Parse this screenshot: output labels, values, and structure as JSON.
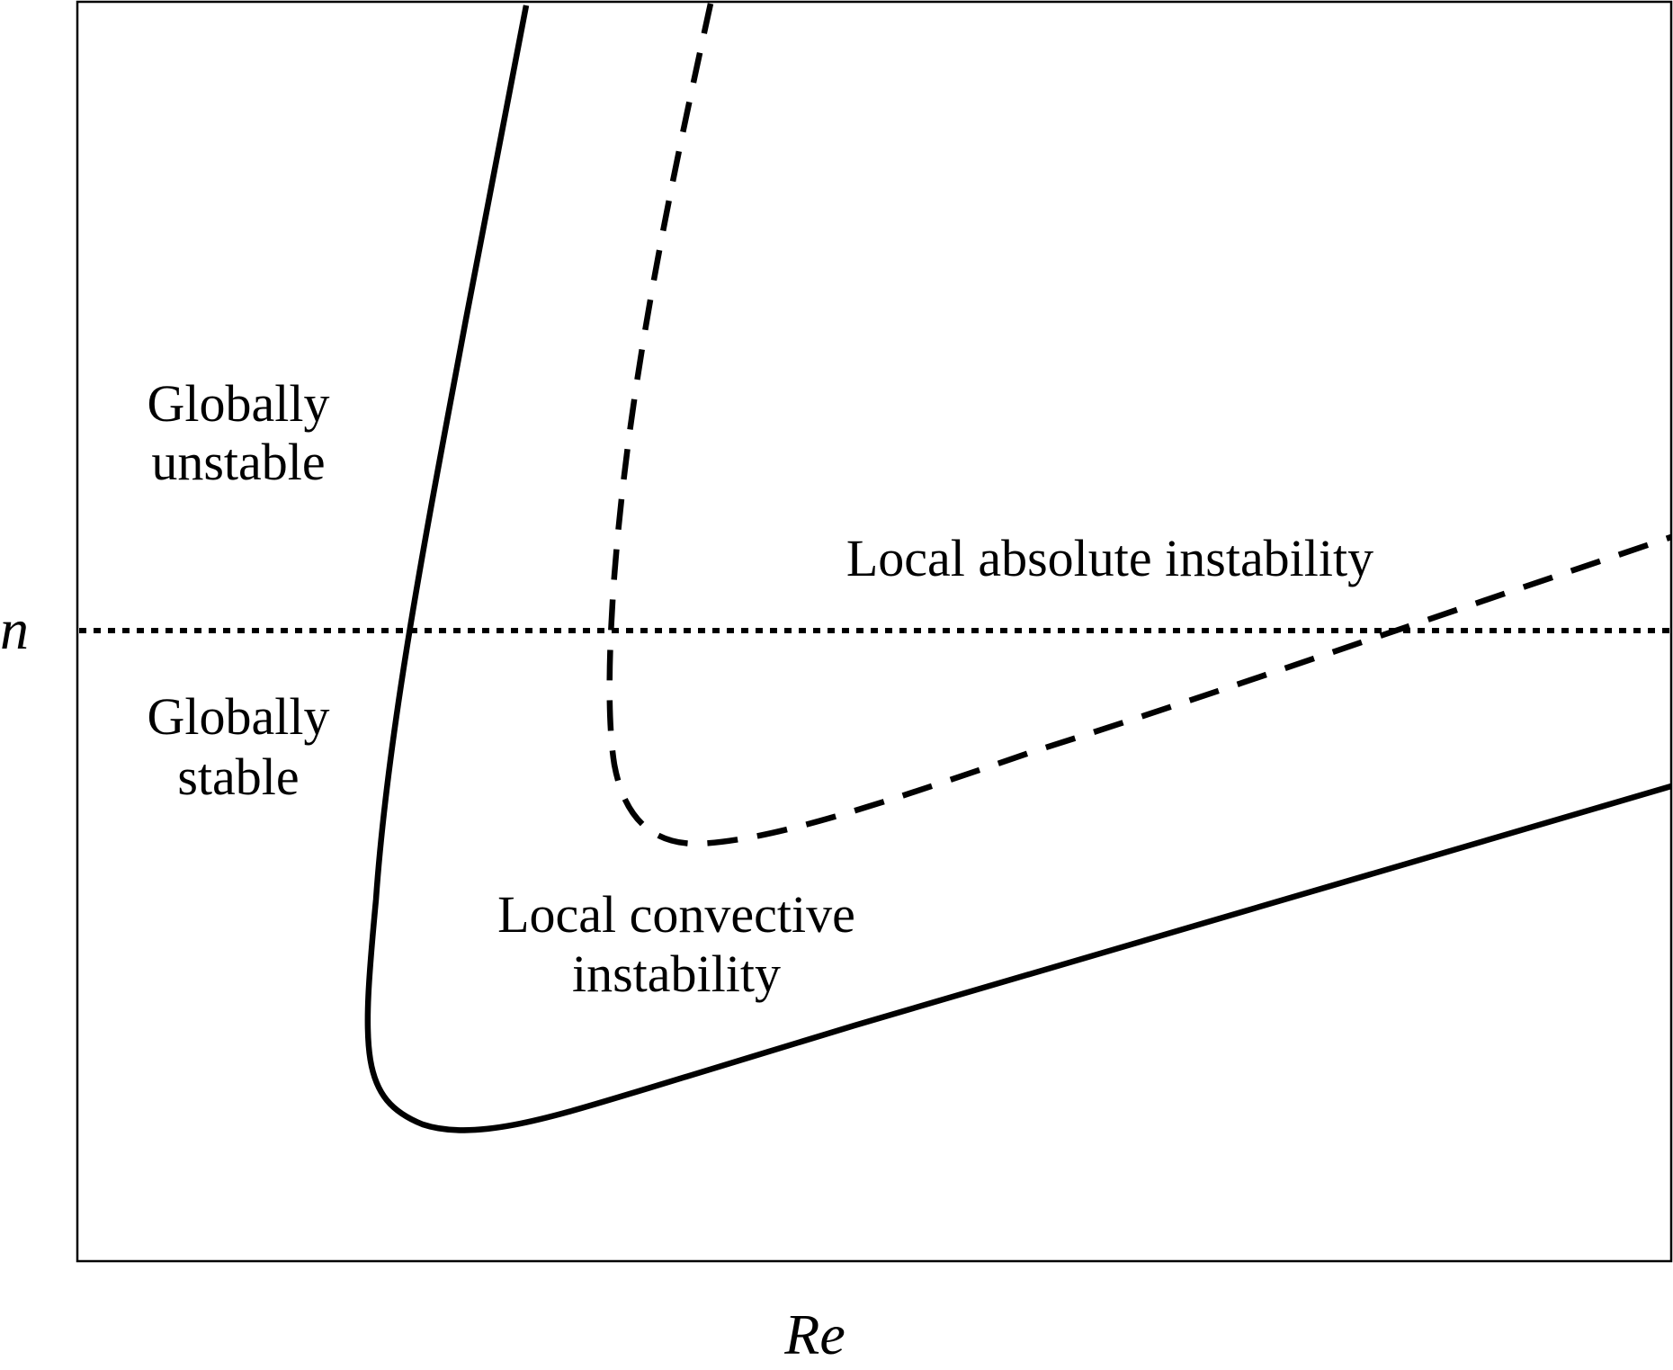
{
  "axes": {
    "x_label": "Re",
    "y_label": "n"
  },
  "regions": {
    "globally_unstable": [
      "Globally",
      "unstable"
    ],
    "globally_stable": [
      "Globally",
      "stable"
    ],
    "local_absolute": "Local absolute instability",
    "local_convective": [
      "Local convective",
      "instability"
    ]
  },
  "curves": [
    {
      "id": "global-stability-boundary",
      "style": "solid"
    },
    {
      "id": "absolute-instability-boundary",
      "style": "dashed"
    },
    {
      "id": "critical-n-line",
      "style": "dotted"
    }
  ],
  "colors": {
    "ink": "#000000",
    "background": "#ffffff"
  }
}
